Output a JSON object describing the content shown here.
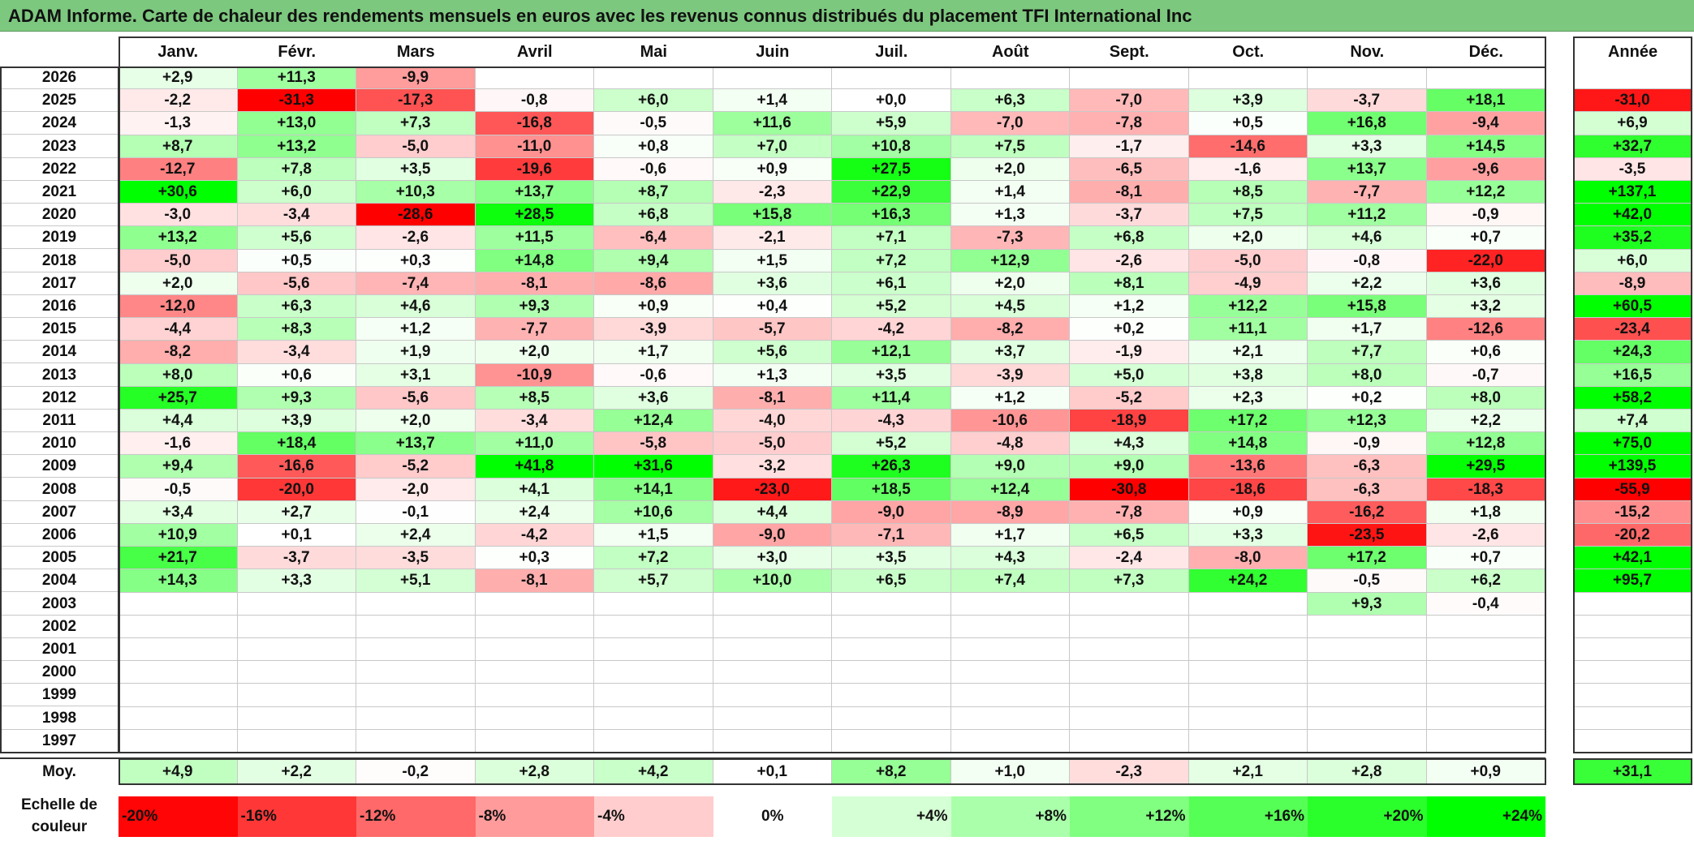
{
  "title": "ADAM Informe. Carte de chaleur des rendements mensuels en euros avec les revenus connus distribués du placement TFI International Inc",
  "chart_data": {
    "type": "heatmap",
    "title": "ADAM Informe. Carte de chaleur des rendements mensuels en euros avec les revenus connus distribués du placement TFI International Inc",
    "columns": [
      "Janv.",
      "Févr.",
      "Mars",
      "Avril",
      "Mai",
      "Juin",
      "Juil.",
      "Août",
      "Sept.",
      "Oct.",
      "Nov.",
      "Déc."
    ],
    "year_header": "Année",
    "rows": [
      {
        "year": "2026",
        "months": [
          "+2,9",
          "+11,3",
          "-9,9",
          "",
          "",
          "",
          "",
          "",
          "",
          "",
          "",
          ""
        ],
        "annual": ""
      },
      {
        "year": "2025",
        "months": [
          "-2,2",
          "-31,3",
          "-17,3",
          "-0,8",
          "+6,0",
          "+1,4",
          "+0,0",
          "+6,3",
          "-7,0",
          "+3,9",
          "-3,7",
          "+18,1"
        ],
        "annual": "-31,0"
      },
      {
        "year": "2024",
        "months": [
          "-1,3",
          "+13,0",
          "+7,3",
          "-16,8",
          "-0,5",
          "+11,6",
          "+5,9",
          "-7,0",
          "-7,8",
          "+0,5",
          "+16,8",
          "-9,4"
        ],
        "annual": "+6,9"
      },
      {
        "year": "2023",
        "months": [
          "+8,7",
          "+13,2",
          "-5,0",
          "-11,0",
          "+0,8",
          "+7,0",
          "+10,8",
          "+7,5",
          "-1,7",
          "-14,6",
          "+3,3",
          "+14,5"
        ],
        "annual": "+32,7"
      },
      {
        "year": "2022",
        "months": [
          "-12,7",
          "+7,8",
          "+3,5",
          "-19,6",
          "-0,6",
          "+0,9",
          "+27,5",
          "+2,0",
          "-6,5",
          "-1,6",
          "+13,7",
          "-9,6"
        ],
        "annual": "-3,5"
      },
      {
        "year": "2021",
        "months": [
          "+30,6",
          "+6,0",
          "+10,3",
          "+13,7",
          "+8,7",
          "-2,3",
          "+22,9",
          "+1,4",
          "-8,1",
          "+8,5",
          "-7,7",
          "+12,2"
        ],
        "annual": "+137,1"
      },
      {
        "year": "2020",
        "months": [
          "-3,0",
          "-3,4",
          "-28,6",
          "+28,5",
          "+6,8",
          "+15,8",
          "+16,3",
          "+1,3",
          "-3,7",
          "+7,5",
          "+11,2",
          "-0,9"
        ],
        "annual": "+42,0"
      },
      {
        "year": "2019",
        "months": [
          "+13,2",
          "+5,6",
          "-2,6",
          "+11,5",
          "-6,4",
          "-2,1",
          "+7,1",
          "-7,3",
          "+6,8",
          "+2,0",
          "+4,6",
          "+0,7"
        ],
        "annual": "+35,2"
      },
      {
        "year": "2018",
        "months": [
          "-5,0",
          "+0,5",
          "+0,3",
          "+14,8",
          "+9,4",
          "+1,5",
          "+7,2",
          "+12,9",
          "-2,6",
          "-5,0",
          "-0,8",
          "-22,0"
        ],
        "annual": "+6,0"
      },
      {
        "year": "2017",
        "months": [
          "+2,0",
          "-5,6",
          "-7,4",
          "-8,1",
          "-8,6",
          "+3,6",
          "+6,1",
          "+2,0",
          "+8,1",
          "-4,9",
          "+2,2",
          "+3,6"
        ],
        "annual": "-8,9"
      },
      {
        "year": "2016",
        "months": [
          "-12,0",
          "+6,3",
          "+4,6",
          "+9,3",
          "+0,9",
          "+0,4",
          "+5,2",
          "+4,5",
          "+1,2",
          "+12,2",
          "+15,8",
          "+3,2"
        ],
        "annual": "+60,5"
      },
      {
        "year": "2015",
        "months": [
          "-4,4",
          "+8,3",
          "+1,2",
          "-7,7",
          "-3,9",
          "-5,7",
          "-4,2",
          "-8,2",
          "+0,2",
          "+11,1",
          "+1,7",
          "-12,6"
        ],
        "annual": "-23,4"
      },
      {
        "year": "2014",
        "months": [
          "-8,2",
          "-3,4",
          "+1,9",
          "+2,0",
          "+1,7",
          "+5,6",
          "+12,1",
          "+3,7",
          "-1,9",
          "+2,1",
          "+7,7",
          "+0,6"
        ],
        "annual": "+24,3"
      },
      {
        "year": "2013",
        "months": [
          "+8,0",
          "+0,6",
          "+3,1",
          "-10,9",
          "-0,6",
          "+1,3",
          "+3,5",
          "-3,9",
          "+5,0",
          "+3,8",
          "+8,0",
          "-0,7"
        ],
        "annual": "+16,5"
      },
      {
        "year": "2012",
        "months": [
          "+25,7",
          "+9,3",
          "-5,6",
          "+8,5",
          "+3,6",
          "-8,1",
          "+11,4",
          "+1,2",
          "-5,2",
          "+2,3",
          "+0,2",
          "+8,0"
        ],
        "annual": "+58,2"
      },
      {
        "year": "2011",
        "months": [
          "+4,4",
          "+3,9",
          "+2,0",
          "-3,4",
          "+12,4",
          "-4,0",
          "-4,3",
          "-10,6",
          "-18,9",
          "+17,2",
          "+12,3",
          "+2,2"
        ],
        "annual": "+7,4"
      },
      {
        "year": "2010",
        "months": [
          "-1,6",
          "+18,4",
          "+13,7",
          "+11,0",
          "-5,8",
          "-5,0",
          "+5,2",
          "-4,8",
          "+4,3",
          "+14,8",
          "-0,9",
          "+12,8"
        ],
        "annual": "+75,0"
      },
      {
        "year": "2009",
        "months": [
          "+9,4",
          "-16,6",
          "-5,2",
          "+41,8",
          "+31,6",
          "-3,2",
          "+26,3",
          "+9,0",
          "+9,0",
          "-13,6",
          "-6,3",
          "+29,5"
        ],
        "annual": "+139,5"
      },
      {
        "year": "2008",
        "months": [
          "-0,5",
          "-20,0",
          "-2,0",
          "+4,1",
          "+14,1",
          "-23,0",
          "+18,5",
          "+12,4",
          "-30,8",
          "-18,6",
          "-6,3",
          "-18,3"
        ],
        "annual": "-55,9"
      },
      {
        "year": "2007",
        "months": [
          "+3,4",
          "+2,7",
          "-0,1",
          "+2,4",
          "+10,6",
          "+4,4",
          "-9,0",
          "-8,9",
          "-7,8",
          "+0,9",
          "-16,2",
          "+1,8"
        ],
        "annual": "-15,2"
      },
      {
        "year": "2006",
        "months": [
          "+10,9",
          "+0,1",
          "+2,4",
          "-4,2",
          "+1,5",
          "-9,0",
          "-7,1",
          "+1,7",
          "+6,5",
          "+3,3",
          "-23,5",
          "-2,6"
        ],
        "annual": "-20,2"
      },
      {
        "year": "2005",
        "months": [
          "+21,7",
          "-3,7",
          "-3,5",
          "+0,3",
          "+7,2",
          "+3,0",
          "+3,5",
          "+4,3",
          "-2,4",
          "-8,0",
          "+17,2",
          "+0,7"
        ],
        "annual": "+42,1"
      },
      {
        "year": "2004",
        "months": [
          "+14,3",
          "+3,3",
          "+5,1",
          "-8,1",
          "+5,7",
          "+10,0",
          "+6,5",
          "+7,4",
          "+7,3",
          "+24,2",
          "-0,5",
          "+6,2"
        ],
        "annual": "+95,7"
      },
      {
        "year": "2003",
        "months": [
          "",
          "",
          "",
          "",
          "",
          "",
          "",
          "",
          "",
          "",
          "+9,3",
          "-0,4"
        ],
        "annual": ""
      },
      {
        "year": "2002",
        "months": [
          "",
          "",
          "",
          "",
          "",
          "",
          "",
          "",
          "",
          "",
          "",
          ""
        ],
        "annual": ""
      },
      {
        "year": "2001",
        "months": [
          "",
          "",
          "",
          "",
          "",
          "",
          "",
          "",
          "",
          "",
          "",
          ""
        ],
        "annual": ""
      },
      {
        "year": "2000",
        "months": [
          "",
          "",
          "",
          "",
          "",
          "",
          "",
          "",
          "",
          "",
          "",
          ""
        ],
        "annual": ""
      },
      {
        "year": "1999",
        "months": [
          "",
          "",
          "",
          "",
          "",
          "",
          "",
          "",
          "",
          "",
          "",
          ""
        ],
        "annual": ""
      },
      {
        "year": "1998",
        "months": [
          "",
          "",
          "",
          "",
          "",
          "",
          "",
          "",
          "",
          "",
          "",
          ""
        ],
        "annual": ""
      },
      {
        "year": "1997",
        "months": [
          "",
          "",
          "",
          "",
          "",
          "",
          "",
          "",
          "",
          "",
          "",
          ""
        ],
        "annual": ""
      }
    ],
    "average": {
      "label": "Moy.",
      "months": [
        "+4,9",
        "+2,2",
        "-0,2",
        "+2,8",
        "+4,2",
        "+0,1",
        "+8,2",
        "+1,0",
        "-2,3",
        "+2,1",
        "+2,8",
        "+0,9"
      ],
      "annual": "+31,1"
    },
    "color_scale": {
      "label": "Echelle de couleur",
      "stops": [
        {
          "label": "-20%",
          "value": -20
        },
        {
          "label": "-16%",
          "value": -16
        },
        {
          "label": "-12%",
          "value": -12
        },
        {
          "label": "-8%",
          "value": -8
        },
        {
          "label": "-4%",
          "value": -4
        },
        {
          "label": "0%",
          "value": 0
        },
        {
          "label": "+4%",
          "value": 4
        },
        {
          "label": "+8%",
          "value": 8
        },
        {
          "label": "+12%",
          "value": 12
        },
        {
          "label": "+16%",
          "value": 16
        },
        {
          "label": "+20%",
          "value": 20
        },
        {
          "label": "+24%",
          "value": 24
        }
      ],
      "colors": {
        "negative": "#ff0000",
        "neutral": "#ffffff",
        "positive": "#00ff00"
      }
    }
  }
}
